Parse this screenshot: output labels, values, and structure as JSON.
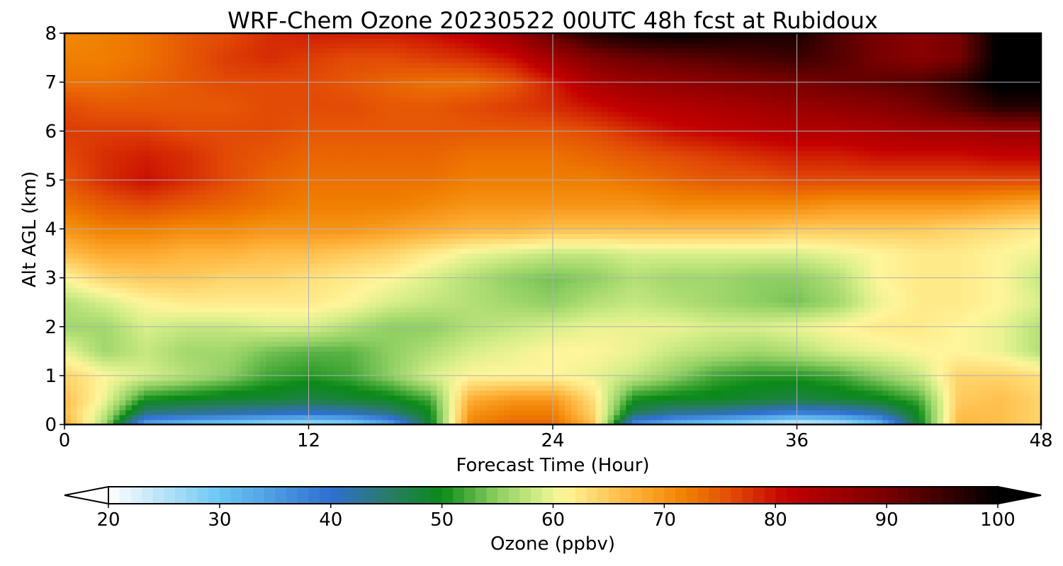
{
  "chart_data": {
    "type": "heatmap",
    "title": "WRF-Chem Ozone  20230522 00UTC 48h fcst at Rubidoux",
    "xlabel": "Forecast Time (Hour)",
    "ylabel": "Alt AGL (km)",
    "xlim": [
      0,
      48
    ],
    "ylim": [
      0,
      8
    ],
    "xticks": [
      0,
      12,
      24,
      36,
      48
    ],
    "yticks": [
      0,
      1,
      2,
      3,
      4,
      5,
      6,
      7,
      8
    ],
    "grid": true,
    "x": [
      0,
      2,
      4,
      6,
      8,
      10,
      12,
      14,
      16,
      18,
      20,
      22,
      24,
      26,
      28,
      30,
      32,
      34,
      36,
      38,
      40,
      42,
      44,
      46,
      48
    ],
    "y": [
      0,
      0.25,
      0.5,
      1,
      1.5,
      2,
      2.5,
      3,
      3.5,
      4,
      4.5,
      5,
      5.5,
      6,
      6.5,
      7,
      7.5,
      8
    ],
    "z": [
      [
        68,
        56,
        33,
        30,
        28,
        26,
        25,
        27,
        33,
        49,
        72,
        74,
        74,
        66,
        36,
        31,
        28,
        25,
        22,
        24,
        30,
        49,
        67,
        66,
        64
      ],
      [
        66,
        58,
        44,
        43,
        42,
        41,
        40,
        41,
        44,
        50,
        70,
        72,
        72,
        64,
        46,
        43,
        42,
        40,
        38,
        39,
        42,
        50,
        66,
        66,
        64
      ],
      [
        66,
        60,
        50,
        49,
        48,
        48,
        47,
        48,
        49,
        52,
        68,
        70,
        70,
        63,
        50,
        49,
        49,
        48,
        47,
        48,
        49,
        52,
        65,
        66,
        64
      ],
      [
        64,
        61,
        59,
        57,
        55,
        52,
        51,
        52,
        55,
        59,
        61,
        61,
        61,
        60,
        58,
        55,
        52,
        51,
        51,
        52,
        55,
        58,
        64,
        64,
        63
      ],
      [
        60,
        56,
        58,
        56,
        56,
        54,
        53,
        53,
        55,
        57,
        59,
        60,
        61,
        61,
        60,
        58,
        57,
        56,
        57,
        59,
        60,
        61,
        61,
        60,
        57
      ],
      [
        56,
        56,
        59,
        58,
        58,
        59,
        59,
        57,
        55,
        55,
        57,
        58,
        59,
        60,
        60,
        60,
        59,
        59,
        60,
        61,
        62,
        62,
        61,
        60,
        57
      ],
      [
        57,
        59,
        61,
        62,
        62,
        62,
        62,
        61,
        59,
        58,
        57,
        56,
        55,
        57,
        58,
        57,
        56,
        55,
        54,
        56,
        60,
        62,
        62,
        61,
        59
      ],
      [
        61,
        64,
        65,
        65,
        64,
        64,
        63,
        62,
        61,
        59,
        57,
        55,
        54,
        55,
        57,
        56,
        56,
        55,
        55,
        57,
        61,
        62,
        62,
        61,
        58
      ],
      [
        66,
        68,
        68,
        67,
        67,
        66,
        66,
        65,
        64,
        62,
        60,
        59,
        58,
        58,
        59,
        59,
        59,
        59,
        59,
        60,
        61,
        62,
        62,
        61,
        60
      ],
      [
        70,
        72,
        72,
        71,
        71,
        70,
        70,
        70,
        69,
        68,
        67,
        67,
        66,
        66,
        66,
        66,
        66,
        66,
        65,
        65,
        65,
        65,
        64,
        63,
        62
      ],
      [
        73,
        75,
        76,
        75,
        74,
        73,
        72,
        72,
        72,
        71,
        70,
        70,
        70,
        70,
        70,
        71,
        71,
        71,
        71,
        70,
        70,
        70,
        70,
        69,
        68
      ],
      [
        75,
        78,
        80,
        78,
        76,
        74,
        73,
        73,
        73,
        73,
        72,
        72,
        72,
        72,
        73,
        74,
        75,
        75,
        76,
        76,
        76,
        76,
        76,
        76,
        76
      ],
      [
        76,
        78,
        79,
        78,
        76,
        75,
        74,
        74,
        74,
        74,
        73,
        73,
        73,
        74,
        75,
        76,
        77,
        78,
        79,
        79,
        80,
        80,
        80,
        81,
        81
      ],
      [
        77,
        77,
        77,
        76,
        76,
        76,
        75,
        75,
        75,
        75,
        75,
        75,
        75,
        76,
        78,
        80,
        81,
        82,
        83,
        83,
        84,
        85,
        85,
        86,
        86
      ],
      [
        76,
        75,
        75,
        75,
        75,
        76,
        76,
        76,
        75,
        75,
        76,
        77,
        78,
        80,
        82,
        83,
        84,
        85,
        86,
        87,
        88,
        90,
        93,
        97,
        97
      ],
      [
        73,
        73,
        74,
        75,
        76,
        76,
        76,
        75,
        74,
        73,
        73,
        75,
        79,
        84,
        86,
        87,
        88,
        89,
        90,
        91,
        92,
        93,
        96,
        101,
        101
      ],
      [
        72,
        72,
        73,
        75,
        77,
        78,
        77,
        76,
        76,
        77,
        78,
        80,
        85,
        89,
        91,
        92,
        93,
        94,
        95,
        93,
        90,
        88,
        90,
        101,
        101
      ],
      [
        71,
        72,
        73,
        75,
        76,
        78,
        79,
        79,
        79,
        80,
        82,
        86,
        92,
        97,
        99,
        100,
        99,
        98,
        98,
        93,
        90,
        88,
        90,
        101,
        101
      ]
    ],
    "colorbar": {
      "label": "Ozone  (ppbv)",
      "min": 20,
      "max": 100,
      "ticks": [
        20,
        30,
        40,
        50,
        60,
        70,
        80,
        90,
        100
      ],
      "extend": "both",
      "stops": [
        {
          "v": 20,
          "c": "#ffffff"
        },
        {
          "v": 30,
          "c": "#6bc6f3"
        },
        {
          "v": 40,
          "c": "#2f6fd0"
        },
        {
          "v": 45,
          "c": "#2a7a6a"
        },
        {
          "v": 50,
          "c": "#0b8a17"
        },
        {
          "v": 55,
          "c": "#8fcf63"
        },
        {
          "v": 59,
          "c": "#d8ef8a"
        },
        {
          "v": 61,
          "c": "#fff59a"
        },
        {
          "v": 67,
          "c": "#ffb43c"
        },
        {
          "v": 72,
          "c": "#f07f00"
        },
        {
          "v": 76,
          "c": "#e24b06"
        },
        {
          "v": 81,
          "c": "#c40000"
        },
        {
          "v": 90,
          "c": "#780000"
        },
        {
          "v": 100,
          "c": "#000000"
        }
      ]
    }
  }
}
